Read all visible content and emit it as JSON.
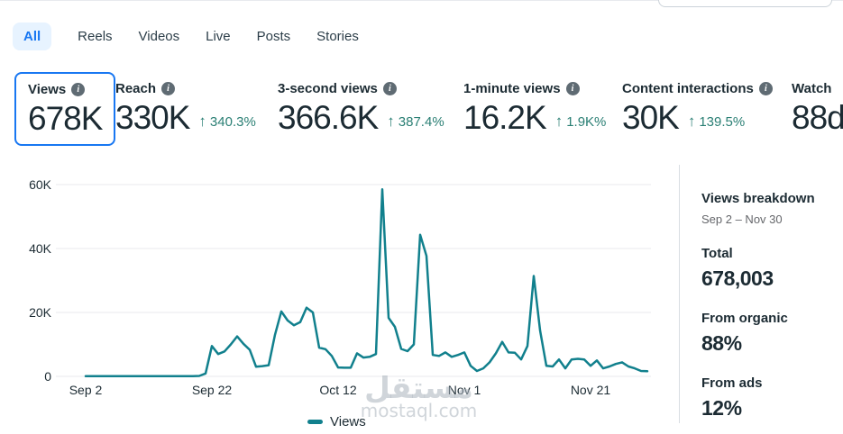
{
  "tabs": [
    {
      "label": "All",
      "selected": true
    },
    {
      "label": "Reels",
      "selected": false
    },
    {
      "label": "Videos",
      "selected": false
    },
    {
      "label": "Live",
      "selected": false
    },
    {
      "label": "Posts",
      "selected": false
    },
    {
      "label": "Stories",
      "selected": false
    }
  ],
  "icons": {
    "trend_up": "↑",
    "info": "i"
  },
  "metrics": [
    {
      "label": "Views",
      "value": "678K",
      "selected": true
    },
    {
      "label": "Reach",
      "value": "330K",
      "trend": "340.3%",
      "direction": "up"
    },
    {
      "label": "3-second views",
      "value": "366.6K",
      "trend": "387.4%",
      "direction": "up"
    },
    {
      "label": "1-minute views",
      "value": "16.2K",
      "trend": "1.9K%",
      "direction": "up"
    },
    {
      "label": "Content interactions",
      "value": "30K",
      "trend": "139.5%",
      "direction": "up"
    },
    {
      "label": "Watch",
      "value": "88d",
      "truncated": true
    }
  ],
  "chart_data": {
    "type": "line",
    "x_tick_labels": [
      "Sep 2",
      "Sep 22",
      "Oct 12",
      "Nov 1",
      "Nov 21"
    ],
    "x_tick_indices": [
      0,
      20,
      40,
      60,
      80
    ],
    "y_tick_labels": [
      "0",
      "20K",
      "40K",
      "60K"
    ],
    "y_tick_values": [
      0,
      20000,
      40000,
      60000
    ],
    "ylim": [
      0,
      62000
    ],
    "grid": true,
    "legend_position": "bottom",
    "date_range": "Sep 2 - Nov 30",
    "series": [
      {
        "name": "Views",
        "color": "#11808d",
        "values": [
          80,
          80,
          80,
          80,
          80,
          80,
          80,
          80,
          80,
          80,
          80,
          80,
          80,
          80,
          80,
          80,
          80,
          80,
          150,
          900,
          9500,
          7000,
          7800,
          10000,
          12500,
          10200,
          8300,
          3000,
          3200,
          3500,
          13000,
          20300,
          17500,
          16000,
          17000,
          21500,
          20000,
          9000,
          8500,
          6400,
          2800,
          2700,
          2700,
          7200,
          5900,
          6100,
          7000,
          58500,
          18300,
          15500,
          8600,
          7900,
          10000,
          44300,
          37700,
          6700,
          6400,
          7500,
          6100,
          6700,
          7500,
          3300,
          1700,
          2500,
          4400,
          7200,
          10800,
          7500,
          7400,
          5300,
          9500,
          31400,
          14400,
          3300,
          3100,
          5300,
          2500,
          5300,
          5500,
          5300,
          3300,
          5000,
          2500,
          3100,
          3900,
          4400,
          3100,
          2500,
          1700,
          1600
        ]
      }
    ]
  },
  "legend": {
    "label": "Views",
    "color": "#11808d"
  },
  "breakdown": {
    "title": "Views breakdown",
    "date_range": "Sep 2 – Nov 30",
    "items": [
      {
        "label": "Total",
        "value": "678,003"
      },
      {
        "label": "From organic",
        "value": "88%"
      },
      {
        "label": "From ads",
        "value": "12%"
      }
    ]
  },
  "watermark": {
    "arabic": "مستقل",
    "domain": "mostaql.com"
  },
  "colors": {
    "accent_blue": "#1877f2",
    "tab_pill_bg": "#e7f3ff",
    "text_dark": "#1c2b33",
    "trend_positive": "#2a7f74",
    "chart_line": "#11808d",
    "gridline": "#e8eaed",
    "divider": "#d9dee3",
    "muted_text": "#65676b"
  }
}
